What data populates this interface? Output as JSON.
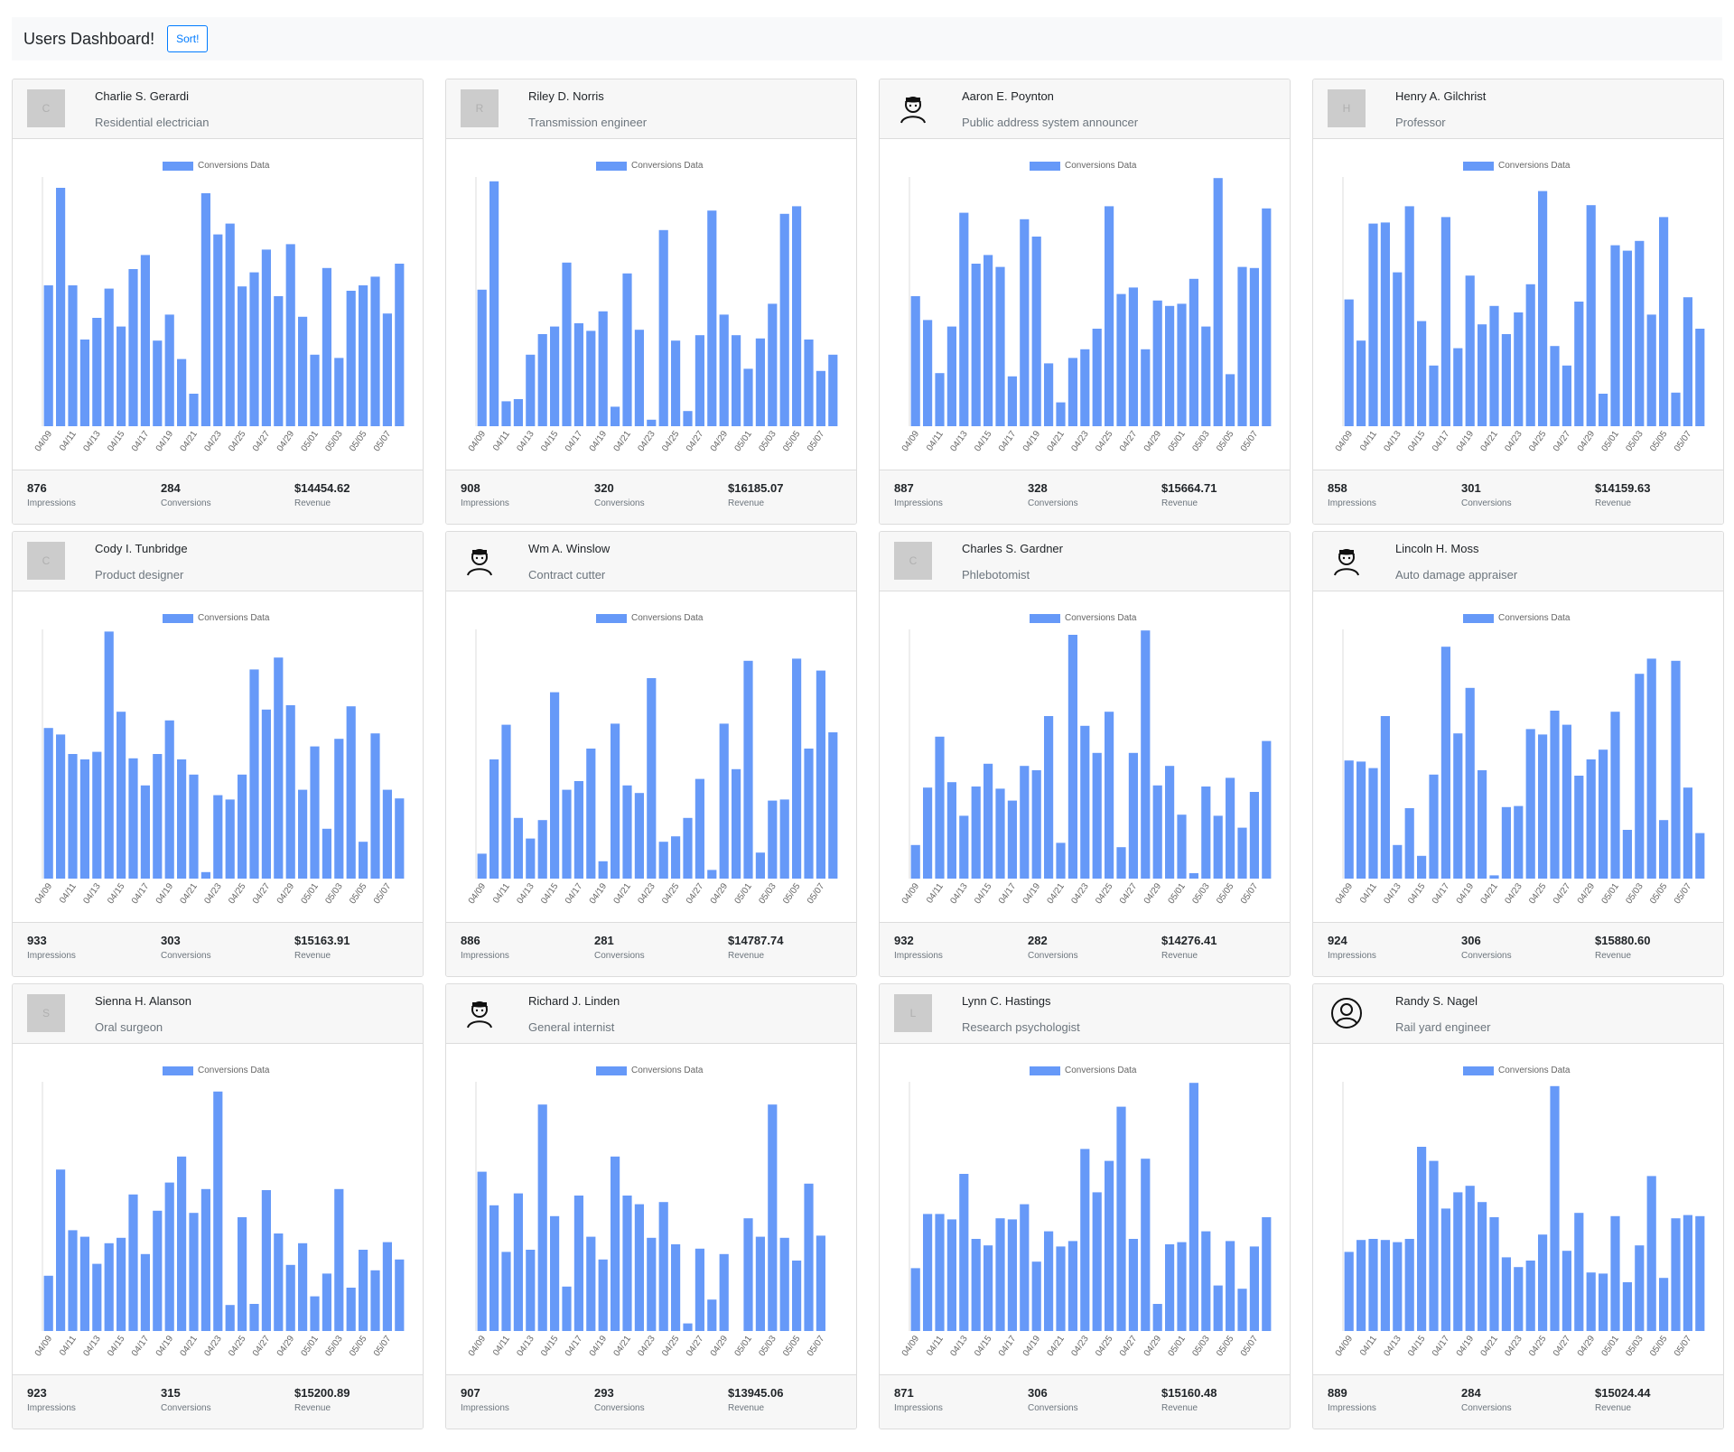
{
  "navbar": {
    "title": "Users Dashboard!",
    "sort_label": "Sort!"
  },
  "colors": {
    "bar": "#6699f8",
    "axis": "#dddddd",
    "tick_text": "#666666"
  },
  "stat_labels": {
    "impressions": "Impressions",
    "conversions": "Conversions",
    "revenue": "Revenue"
  },
  "users": [
    {
      "name": "Charlie S. Gerardi",
      "job": "Residential electrician",
      "avatar": {
        "type": "placeholder",
        "letter": "C"
      },
      "impressions": "876",
      "conversions": "284",
      "revenue": "$14454.62"
    },
    {
      "name": "Riley D. Norris",
      "job": "Transmission engineer",
      "avatar": {
        "type": "placeholder",
        "letter": "R"
      },
      "impressions": "908",
      "conversions": "320",
      "revenue": "$16185.07"
    },
    {
      "name": "Aaron E. Poynton",
      "job": "Public address system announcer",
      "avatar": {
        "type": "icon",
        "icon": "man-face-icon"
      },
      "impressions": "887",
      "conversions": "328",
      "revenue": "$15664.71"
    },
    {
      "name": "Henry A. Gilchrist",
      "job": "Professor",
      "avatar": {
        "type": "placeholder",
        "letter": "H"
      },
      "impressions": "858",
      "conversions": "301",
      "revenue": "$14159.63"
    },
    {
      "name": "Cody I. Tunbridge",
      "job": "Product designer",
      "avatar": {
        "type": "placeholder",
        "letter": "C"
      },
      "impressions": "933",
      "conversions": "303",
      "revenue": "$15163.91"
    },
    {
      "name": "Wm A. Winslow",
      "job": "Contract cutter",
      "avatar": {
        "type": "icon",
        "icon": "man-face-icon"
      },
      "impressions": "886",
      "conversions": "281",
      "revenue": "$14787.74"
    },
    {
      "name": "Charles S. Gardner",
      "job": "Phlebotomist",
      "avatar": {
        "type": "placeholder",
        "letter": "C"
      },
      "impressions": "932",
      "conversions": "282",
      "revenue": "$14276.41"
    },
    {
      "name": "Lincoln H. Moss",
      "job": "Auto damage appraiser",
      "avatar": {
        "type": "icon",
        "icon": "man-face-icon"
      },
      "impressions": "924",
      "conversions": "306",
      "revenue": "$15880.60"
    },
    {
      "name": "Sienna H. Alanson",
      "job": "Oral surgeon",
      "avatar": {
        "type": "placeholder",
        "letter": "S"
      },
      "impressions": "923",
      "conversions": "315",
      "revenue": "$15200.89"
    },
    {
      "name": "Richard J. Linden",
      "job": "General internist",
      "avatar": {
        "type": "icon",
        "icon": "man-face-icon"
      },
      "impressions": "907",
      "conversions": "293",
      "revenue": "$13945.06"
    },
    {
      "name": "Lynn C. Hastings",
      "job": "Research psychologist",
      "avatar": {
        "type": "placeholder",
        "letter": "L"
      },
      "impressions": "871",
      "conversions": "306",
      "revenue": "$15160.48"
    },
    {
      "name": "Randy S. Nagel",
      "job": "Rail yard engineer",
      "avatar": {
        "type": "icon",
        "icon": "user-circle-icon"
      },
      "impressions": "889",
      "conversions": "284",
      "revenue": "$15024.44"
    }
  ],
  "chart_data": [
    {
      "type": "bar",
      "legend": "Conversions Data",
      "ylim": [
        0,
        23
      ],
      "x_ticks": [
        "04/09",
        "04/11",
        "04/13",
        "04/15",
        "04/17",
        "04/19",
        "04/21",
        "04/23",
        "04/25",
        "04/27",
        "04/29",
        "05/01",
        "05/03",
        "05/05",
        "05/07"
      ],
      "values": [
        13,
        22,
        13,
        8,
        10,
        12.7,
        9.2,
        14.5,
        15.8,
        7.9,
        10.3,
        6.2,
        3.0,
        21.5,
        17.7,
        18.7,
        12.9,
        14.2,
        16.3,
        12.0,
        16.8,
        10.1,
        6.6,
        14.6,
        6.3,
        12.5,
        13.0,
        13.8,
        10.4,
        15.0
      ]
    },
    {
      "type": "bar",
      "legend": "Conversions Data",
      "ylim": [
        0,
        23
      ],
      "x_ticks": [
        "04/09",
        "04/11",
        "04/13",
        "04/15",
        "04/17",
        "04/19",
        "04/21",
        "04/23",
        "04/25",
        "04/27",
        "04/29",
        "05/01",
        "05/03",
        "05/05",
        "05/07"
      ],
      "values": [
        12.6,
        22.6,
        2.3,
        2.5,
        6.6,
        8.5,
        9.2,
        15.1,
        9.5,
        8.8,
        10.6,
        1.8,
        14.1,
        8.9,
        0.6,
        18.1,
        7.9,
        1.4,
        8.4,
        19.9,
        10.3,
        8.4,
        5.3,
        8.1,
        11.3,
        19.6,
        20.3,
        8.0,
        5.1,
        6.6
      ]
    },
    {
      "type": "bar",
      "legend": "Conversions Data",
      "ylim": [
        0,
        23
      ],
      "x_ticks": [
        "04/09",
        "04/11",
        "04/13",
        "04/15",
        "04/17",
        "04/19",
        "04/21",
        "04/23",
        "04/25",
        "04/27",
        "04/29",
        "05/01",
        "05/03",
        "05/05",
        "05/07"
      ],
      "values": [
        12.0,
        9.8,
        4.9,
        9.2,
        19.7,
        15.0,
        15.8,
        14.7,
        4.6,
        19.1,
        17.5,
        5.8,
        2.2,
        6.3,
        7.1,
        9.0,
        20.3,
        12.2,
        12.8,
        7.1,
        11.6,
        11.1,
        11.3,
        13.6,
        9.2,
        22.9,
        4.8,
        14.7,
        14.6,
        20.1
      ]
    },
    {
      "type": "bar",
      "legend": "Conversions Data",
      "ylim": [
        0,
        23
      ],
      "x_ticks": [
        "04/09",
        "04/11",
        "04/13",
        "04/15",
        "04/17",
        "04/19",
        "04/21",
        "04/23",
        "04/25",
        "04/27",
        "04/29",
        "05/01",
        "05/03",
        "05/05",
        "05/07"
      ],
      "values": [
        11.7,
        7.9,
        18.7,
        18.8,
        14.2,
        20.3,
        9.7,
        5.6,
        19.3,
        7.2,
        13.9,
        9.4,
        11.1,
        8.5,
        10.5,
        13.1,
        21.7,
        7.4,
        5.6,
        11.5,
        20.4,
        3.0,
        16.7,
        16.2,
        17.1,
        10.3,
        19.3,
        3.1,
        11.9,
        9.0
      ]
    },
    {
      "type": "bar",
      "legend": "Conversions Data",
      "ylim": [
        0,
        23
      ],
      "x_ticks": [
        "04/09",
        "04/11",
        "04/13",
        "04/15",
        "04/17",
        "04/19",
        "04/21",
        "04/23",
        "04/25",
        "04/27",
        "04/29",
        "05/01",
        "05/03",
        "05/05",
        "05/07"
      ],
      "values": [
        13.9,
        13.3,
        11.5,
        11.0,
        11.7,
        22.8,
        15.4,
        11.1,
        8.6,
        11.5,
        14.6,
        11.0,
        9.6,
        0.6,
        7.7,
        7.3,
        9.6,
        19.3,
        15.6,
        20.4,
        16.0,
        8.2,
        12.2,
        4.6,
        12.9,
        15.9,
        3.4,
        13.4,
        8.2,
        7.4
      ]
    },
    {
      "type": "bar",
      "legend": "Conversions Data",
      "ylim": [
        0,
        23
      ],
      "x_ticks": [
        "04/09",
        "04/11",
        "04/13",
        "04/15",
        "04/17",
        "04/19",
        "04/21",
        "04/23",
        "04/25",
        "04/27",
        "04/29",
        "05/01",
        "05/03",
        "05/05",
        "05/07"
      ],
      "values": [
        2.3,
        11.0,
        14.2,
        5.6,
        3.7,
        5.4,
        17.2,
        8.2,
        9.0,
        12.0,
        1.6,
        14.3,
        8.6,
        7.9,
        18.5,
        3.4,
        3.9,
        5.6,
        9.2,
        0.8,
        14.3,
        10.1,
        20.1,
        2.4,
        7.2,
        7.3,
        20.3,
        12.0,
        19.2,
        13.5
      ]
    },
    {
      "type": "bar",
      "legend": "Conversions Data",
      "ylim": [
        0,
        23
      ],
      "x_ticks": [
        "04/09",
        "04/11",
        "04/13",
        "04/15",
        "04/17",
        "04/19",
        "04/21",
        "04/23",
        "04/25",
        "04/27",
        "04/29",
        "05/01",
        "05/03",
        "05/05",
        "05/07"
      ],
      "values": [
        3.1,
        8.4,
        13.1,
        8.9,
        5.8,
        8.5,
        10.6,
        8.3,
        7.2,
        10.4,
        10.0,
        15.0,
        3.3,
        22.5,
        14.1,
        11.6,
        15.4,
        2.9,
        11.6,
        22.9,
        8.6,
        10.4,
        5.9,
        0.5,
        8.5,
        5.8,
        9.3,
        4.7,
        8.0,
        12.7
      ]
    },
    {
      "type": "bar",
      "legend": "Conversions Data",
      "ylim": [
        0,
        23
      ],
      "x_ticks": [
        "04/09",
        "04/11",
        "04/13",
        "04/15",
        "04/17",
        "04/19",
        "04/21",
        "04/23",
        "04/25",
        "04/27",
        "04/29",
        "05/01",
        "05/03",
        "05/05",
        "05/07"
      ],
      "values": [
        10.9,
        10.8,
        10.2,
        15.0,
        3.1,
        6.5,
        2.1,
        9.6,
        21.4,
        13.4,
        17.6,
        10.0,
        0.3,
        6.6,
        6.7,
        13.8,
        13.3,
        15.5,
        14.2,
        9.5,
        11.0,
        11.9,
        15.4,
        4.5,
        18.9,
        20.3,
        5.4,
        20.1,
        8.4,
        4.2
      ]
    },
    {
      "type": "bar",
      "legend": "Conversions Data",
      "ylim": [
        0,
        23
      ],
      "x_ticks": [
        "04/09",
        "04/11",
        "04/13",
        "04/15",
        "04/17",
        "04/19",
        "04/21",
        "04/23",
        "04/25",
        "04/27",
        "04/29",
        "05/01",
        "05/03",
        "05/05",
        "05/07"
      ],
      "values": [
        5.1,
        14.9,
        9.3,
        8.7,
        6.2,
        8.1,
        8.6,
        12.6,
        7.1,
        11.1,
        13.7,
        16.1,
        10.9,
        13.1,
        22.1,
        2.4,
        10.5,
        2.5,
        13.0,
        9.0,
        6.1,
        8.1,
        3.2,
        5.3,
        13.1,
        4.0,
        7.5,
        5.6,
        8.2,
        6.6
      ]
    },
    {
      "type": "bar",
      "legend": "Conversions Data",
      "ylim": [
        0,
        23
      ],
      "x_ticks": [
        "04/09",
        "04/11",
        "04/13",
        "04/15",
        "04/17",
        "04/19",
        "04/21",
        "04/23",
        "04/25",
        "04/27",
        "04/29",
        "05/01",
        "05/03",
        "05/05",
        "05/07"
      ],
      "values": [
        14.7,
        11.6,
        7.3,
        12.7,
        7.5,
        20.9,
        10.6,
        4.1,
        12.5,
        8.7,
        6.6,
        16.1,
        12.5,
        11.7,
        8.6,
        11.9,
        8.0,
        0.7,
        7.6,
        2.9,
        7.1,
        0.0,
        10.4,
        8.7,
        20.9,
        8.6,
        6.5,
        13.6,
        8.8,
        0.0
      ]
    },
    {
      "type": "bar",
      "legend": "Conversions Data",
      "ylim": [
        0,
        23
      ],
      "x_ticks": [
        "04/09",
        "04/11",
        "04/13",
        "04/15",
        "04/17",
        "04/19",
        "04/21",
        "04/23",
        "04/25",
        "04/27",
        "04/29",
        "05/01",
        "05/03",
        "05/05",
        "05/07"
      ],
      "values": [
        5.8,
        10.8,
        10.8,
        10.3,
        14.5,
        8.5,
        7.9,
        10.4,
        10.3,
        11.7,
        6.4,
        9.2,
        7.8,
        8.3,
        16.8,
        12.8,
        15.7,
        20.7,
        8.5,
        15.9,
        2.5,
        8.0,
        8.2,
        22.9,
        9.2,
        4.2,
        8.3,
        3.9,
        7.8,
        10.5
      ]
    },
    {
      "type": "bar",
      "legend": "Conversions Data",
      "ylim": [
        0,
        23
      ],
      "x_ticks": [
        "04/09",
        "04/11",
        "04/13",
        "04/15",
        "04/17",
        "04/19",
        "04/21",
        "04/23",
        "04/25",
        "04/27",
        "04/29",
        "05/01",
        "05/03",
        "05/05",
        "05/07"
      ],
      "values": [
        7.3,
        8.4,
        8.5,
        8.4,
        8.2,
        8.5,
        17.0,
        15.7,
        11.3,
        12.8,
        13.4,
        11.9,
        10.5,
        6.8,
        5.9,
        6.5,
        8.9,
        22.6,
        7.4,
        10.9,
        5.4,
        5.3,
        10.6,
        4.5,
        7.9,
        14.3,
        4.9,
        10.4,
        10.7,
        10.6
      ]
    }
  ]
}
